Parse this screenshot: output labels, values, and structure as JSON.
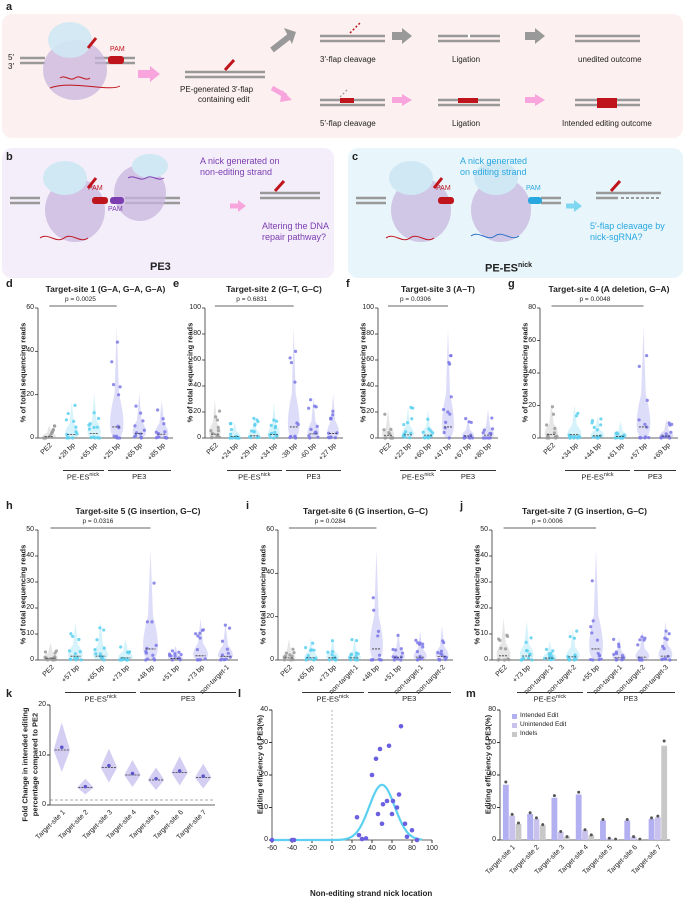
{
  "panels": {
    "a": "a",
    "b": "b",
    "c": "c",
    "d": "d",
    "e": "e",
    "f": "f",
    "g": "g",
    "h": "h",
    "i": "i",
    "j": "j",
    "k": "k",
    "l": "l",
    "m": "m"
  },
  "a": {
    "pam": "PAM",
    "pe_generated": "PE-generated 3′-flap",
    "containing_edit": "containing edit",
    "three_flap_cleavage": "3′-flap cleavage",
    "five_flap_cleavage": "5′-flap cleavage",
    "ligation1": "Ligation",
    "ligation2": "Ligation",
    "unedited": "unedited outcome",
    "intended": "Intended editing outcome",
    "p5": "5′",
    "p3": "3′"
  },
  "b": {
    "nick_text1": "A nick generated on",
    "nick_text2": "non-editing strand",
    "pam1": "PAM",
    "pam2": "PAM",
    "alter1": "Altering the DNA",
    "alter2": "repair pathway?",
    "name": "PE3"
  },
  "c": {
    "nick_text1": "A nick generated",
    "nick_text2": "on editing strand",
    "pam1": "PAM",
    "pam2": "PAM",
    "cleave1": "5′-flap cleavage by",
    "cleave2": "nick-sgRNA?",
    "name": "PE-ES",
    "name_sup": "nick"
  },
  "ylabel_reads": "% of total sequencing reads",
  "plots": [
    {
      "id": "d",
      "title": "Target-site 1 (G–A, G–A, G–A)",
      "ymax": 60,
      "ticks": [
        0,
        20,
        40,
        60
      ],
      "pval": "p = 0.0025",
      "cats": [
        "PE2",
        "+28 bp",
        "+65 bp",
        "+25 bp",
        "+65 bp",
        "+85 bp"
      ],
      "groups": [
        {
          "label": "PE-ES",
          "sup": "nick",
          "from": 1,
          "to": 2
        },
        {
          "label": "PE3",
          "from": 3,
          "to": 5
        }
      ]
    },
    {
      "id": "e",
      "title": "Target-site 2 (G–T, G–C)",
      "ymax": 100,
      "ticks": [
        0,
        20,
        40,
        60,
        80,
        100
      ],
      "pval": "p = 0.6831",
      "cats": [
        "PE2",
        "+24 bp",
        "+29 bp",
        "+34 bp",
        "-38 bp",
        "-60 bp",
        "+27 bp"
      ],
      "groups": [
        {
          "label": "PE-ES",
          "sup": "nick",
          "from": 1,
          "to": 3
        },
        {
          "label": "PE3",
          "from": 4,
          "to": 6
        }
      ]
    },
    {
      "id": "f",
      "title": "Target-site 3 (A–T)",
      "ymax": 100,
      "ticks": [
        0,
        20,
        40,
        60,
        80,
        100
      ],
      "pval": "p = 0.0306",
      "cats": [
        "PE2",
        "+22 bp",
        "+60 bp",
        "+47 bp",
        "+67 bp",
        "+80 bp"
      ],
      "groups": [
        {
          "label": "PE-ES",
          "sup": "nick",
          "from": 1,
          "to": 2
        },
        {
          "label": "PE3",
          "from": 3,
          "to": 5
        }
      ]
    },
    {
      "id": "g",
      "title": "Target-site 4 (A deletion, G–A)",
      "ymax": 80,
      "ticks": [
        0,
        20,
        40,
        60,
        80
      ],
      "pval": "p = 0.0048",
      "cats": [
        "PE2",
        "+34 bp",
        "+44 bp",
        "+61 bp",
        "+57 bp",
        "+69 bp"
      ],
      "groups": [
        {
          "label": "PE-ES",
          "sup": "nick",
          "from": 1,
          "to": 3
        },
        {
          "label": "PE3",
          "from": 4,
          "to": 5
        }
      ]
    },
    {
      "id": "h",
      "title": "Target-site 5 (G insertion, G–C)",
      "ymax": 50,
      "ticks": [
        0,
        10,
        20,
        30,
        40,
        50
      ],
      "pval": "p = 0.0316",
      "cats": [
        "PE2",
        "+57 bp",
        "+65 bp",
        "+73 bp",
        "+48 bp",
        "+51 bp",
        "+73 bp",
        "non-target-1"
      ],
      "groups": [
        {
          "label": "PE-ES",
          "sup": "nick",
          "from": 1,
          "to": 3
        },
        {
          "label": "PE3",
          "from": 4,
          "to": 7
        }
      ]
    },
    {
      "id": "i",
      "title": "Target-site 6 (G insertion, G–C)",
      "ymax": 60,
      "ticks": [
        0,
        20,
        40,
        60
      ],
      "pval": "p = 0.0284",
      "cats": [
        "PE2",
        "+65 bp",
        "+73 bp",
        "non-target-1",
        "+48 bp",
        "+51 bp",
        "non-target-1",
        "non-target-2"
      ],
      "groups": [
        {
          "label": "PE-ES",
          "sup": "nick",
          "from": 1,
          "to": 3
        },
        {
          "label": "PE3",
          "from": 4,
          "to": 7
        }
      ]
    },
    {
      "id": "j",
      "title": "Target-site 7 (G insertion, G–C)",
      "ymax": 50,
      "ticks": [
        0,
        10,
        20,
        30,
        40,
        50
      ],
      "pval": "p = 0.0006",
      "cats": [
        "PE2",
        "+73 bp",
        "non-target-1",
        "non-target-2",
        "+55 bp",
        "non-target-1",
        "non-target-2",
        "non-target-3"
      ],
      "groups": [
        {
          "label": "PE-ES",
          "sup": "nick",
          "from": 1,
          "to": 3
        },
        {
          "label": "PE3",
          "from": 4,
          "to": 7
        }
      ]
    }
  ],
  "k": {
    "ylabel1": "Fold Change in  intended editing",
    "ylabel2": "percentage compared to PE2",
    "ticks": [
      0,
      10,
      20
    ],
    "cats": [
      "Target-site 1",
      "Target-site 2",
      "Target-site 3",
      "Target-site 4",
      "Target-site 5",
      "Target-site 6",
      "Target-site 7"
    ],
    "medians": [
      11,
      3.5,
      7.5,
      6,
      5,
      6.5,
      5.5
    ]
  },
  "l": {
    "ylabel": "Editing efficiency of PE3(%)",
    "xlabel": "Non-editing strand nick location",
    "xticks": [
      -60,
      -40,
      -20,
      0,
      20,
      40,
      60,
      80,
      100
    ],
    "yticks": [
      0,
      10,
      20,
      30,
      40
    ],
    "points": [
      [
        -60,
        0
      ],
      [
        -40,
        0
      ],
      [
        -38,
        0
      ],
      [
        25,
        7
      ],
      [
        27,
        1.5
      ],
      [
        30,
        0.3
      ],
      [
        34,
        0.5
      ],
      [
        40,
        20
      ],
      [
        44,
        25
      ],
      [
        46,
        8
      ],
      [
        48,
        28
      ],
      [
        50,
        5
      ],
      [
        51,
        11
      ],
      [
        55,
        12
      ],
      [
        57,
        29
      ],
      [
        60,
        8
      ],
      [
        61,
        12
      ],
      [
        65,
        10
      ],
      [
        67,
        14
      ],
      [
        69,
        35
      ],
      [
        73,
        5
      ],
      [
        75,
        1
      ],
      [
        80,
        3
      ],
      [
        85,
        0
      ]
    ]
  },
  "m": {
    "ylabel": "Editing efficiency of PE3(%)",
    "yticks": [
      0,
      20,
      40,
      60,
      80
    ],
    "legend": [
      "Intended Edit",
      "Unintended Edit",
      "Indels"
    ],
    "cats": [
      "Target-site 1",
      "Target-site 2",
      "Target-site 3",
      "Target-site 4",
      "Target-site 5",
      "Target-site 6",
      "Target-site 7"
    ],
    "intended": [
      34,
      16,
      26,
      28,
      12,
      12,
      13
    ],
    "unintended": [
      15,
      13,
      5,
      6,
      1,
      2,
      14
    ],
    "indels": [
      10,
      9,
      2,
      3,
      0.5,
      0.5,
      58
    ]
  },
  "colors": {
    "grey": "#9a9a9a",
    "cyan": "#5bd0f0",
    "purple": "#7b78e6",
    "red": "#c0141c",
    "pink": "#f7a5dc"
  }
}
